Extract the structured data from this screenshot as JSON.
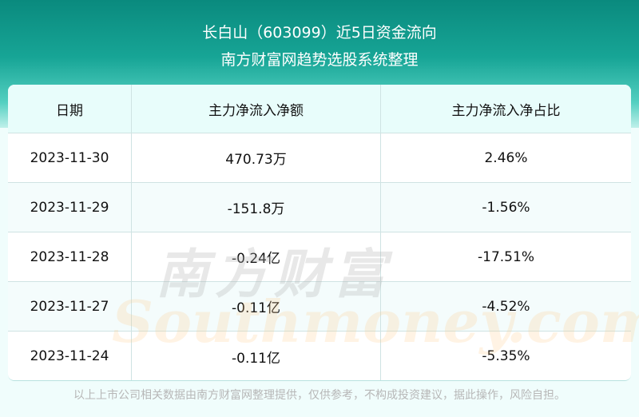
{
  "header": {
    "title": "长白山（603099）近5日资金流向",
    "subtitle": "南方财富网趋势选股系统整理"
  },
  "table": {
    "columns": [
      "日期",
      "主力净流入净额",
      "主力净流入净占比"
    ],
    "rows": [
      [
        "2023-11-30",
        "470.73万",
        "2.46%"
      ],
      [
        "2023-11-29",
        "-151.8万",
        "-1.56%"
      ],
      [
        "2023-11-28",
        "-0.24亿",
        "-17.51%"
      ],
      [
        "2023-11-27",
        "-0.11亿",
        "-4.52%"
      ],
      [
        "2023-11-24",
        "-0.11亿",
        "-5.35%"
      ]
    ]
  },
  "watermark": {
    "cn": "南方财富",
    "en": "Southmoney.com"
  },
  "footer": "以上上市公司相关数据由南方财富网整理提供，仅供参考，不构成投资建议，据此操作，风险自担。",
  "colors": {
    "header_bg": "#0a8a7e",
    "table_head_bg": "#e8fdfb"
  }
}
